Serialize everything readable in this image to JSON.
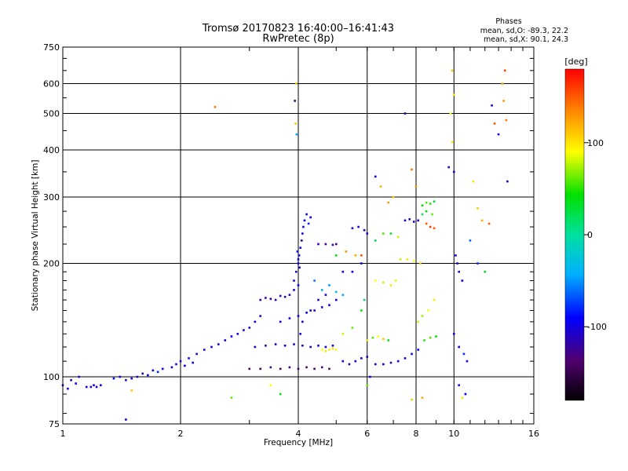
{
  "chart_data": {
    "type": "scatter",
    "title": "Tromsø 20170823 16:40:00–16:41:43",
    "subtitle": "RwPretec (8p)",
    "xlabel": "Frequency [MHz]",
    "ylabel": "Stationary phase Virtual Height [km]",
    "x_scale": "log",
    "y_scale": "log",
    "xlim": [
      1,
      16
    ],
    "ylim": [
      75,
      750
    ],
    "x_ticks": [
      1,
      2,
      4,
      6,
      8,
      10,
      16
    ],
    "x_tick_labels": [
      "1",
      "2",
      "4",
      "6",
      "8",
      "10",
      "16"
    ],
    "y_ticks": [
      75,
      100,
      200,
      300,
      400,
      500,
      600,
      750
    ],
    "y_tick_labels": [
      "75",
      "100",
      "200",
      "300",
      "400",
      "500",
      "600",
      "750"
    ],
    "grid": true,
    "stats": {
      "header": "Phases",
      "line_o": "mean, sd,O: -89.3, 22.2",
      "line_x": "mean, sd,X:  90.1, 24.3"
    },
    "colorbar": {
      "label": "[deg]",
      "range": [
        -180,
        180
      ],
      "ticks": [
        -100,
        0,
        100
      ],
      "tick_labels": [
        "-100",
        "0",
        "100"
      ]
    },
    "series": [
      {
        "points": [
          [
            1.0,
            95,
            -100
          ],
          [
            1.03,
            93,
            -95
          ],
          [
            1.05,
            98,
            -110
          ],
          [
            1.08,
            96,
            -90
          ],
          [
            1.1,
            100,
            -105
          ],
          [
            1.15,
            94,
            -100
          ],
          [
            1.18,
            94,
            -110
          ],
          [
            1.2,
            95,
            -95
          ],
          [
            1.22,
            94,
            -100
          ],
          [
            1.25,
            95,
            -100
          ],
          [
            1.35,
            99,
            -90
          ],
          [
            1.4,
            100,
            -100
          ],
          [
            1.45,
            98,
            -110
          ],
          [
            1.5,
            99,
            -95
          ],
          [
            1.55,
            100,
            -100
          ],
          [
            1.6,
            102,
            -110
          ],
          [
            1.65,
            101,
            -90
          ],
          [
            1.7,
            104,
            -100
          ],
          [
            1.75,
            103,
            -80
          ],
          [
            1.8,
            105,
            -100
          ],
          [
            1.9,
            106,
            -110
          ],
          [
            1.95,
            108,
            -100
          ],
          [
            2.0,
            110,
            -95
          ],
          [
            2.05,
            107,
            -100
          ],
          [
            2.1,
            112,
            -85
          ],
          [
            2.15,
            109,
            -100
          ],
          [
            2.2,
            115,
            -110
          ],
          [
            2.3,
            118,
            -100
          ],
          [
            2.4,
            120,
            -95
          ],
          [
            2.5,
            122,
            -105
          ],
          [
            2.6,
            125,
            -100
          ],
          [
            2.7,
            128,
            -90
          ],
          [
            2.8,
            130,
            -100
          ],
          [
            2.9,
            133,
            -110
          ],
          [
            3.0,
            135,
            -100
          ],
          [
            3.1,
            140,
            -95
          ],
          [
            3.2,
            145,
            -105
          ],
          [
            2.45,
            520,
            140
          ],
          [
            1.45,
            77,
            -100
          ],
          [
            1.5,
            92,
            110
          ],
          [
            3.0,
            105,
            -140
          ],
          [
            3.2,
            105,
            -140
          ],
          [
            3.4,
            106,
            -130
          ],
          [
            3.6,
            105,
            -140
          ],
          [
            3.8,
            106,
            -130
          ],
          [
            4.0,
            105,
            -140
          ],
          [
            4.2,
            106,
            -135
          ],
          [
            4.4,
            105,
            -140
          ],
          [
            4.6,
            106,
            -135
          ],
          [
            4.8,
            105,
            -140
          ],
          [
            3.1,
            120,
            -110
          ],
          [
            3.3,
            121,
            -115
          ],
          [
            3.5,
            122,
            -110
          ],
          [
            3.7,
            121,
            -100
          ],
          [
            3.9,
            122,
            -110
          ],
          [
            4.1,
            121,
            -115
          ],
          [
            4.3,
            120,
            -110
          ],
          [
            4.5,
            121,
            -105
          ],
          [
            4.7,
            120,
            -110
          ],
          [
            4.9,
            121,
            -100
          ],
          [
            3.2,
            160,
            -120
          ],
          [
            3.3,
            162,
            -125
          ],
          [
            3.4,
            161,
            -120
          ],
          [
            3.5,
            160,
            -120
          ],
          [
            3.6,
            164,
            -115
          ],
          [
            3.7,
            163,
            -120
          ],
          [
            3.8,
            165,
            -110
          ],
          [
            3.9,
            170,
            -100
          ],
          [
            4.0,
            175,
            -90
          ],
          [
            3.6,
            140,
            -100
          ],
          [
            3.8,
            143,
            -95
          ],
          [
            4.0,
            145,
            -100
          ],
          [
            4.2,
            148,
            -90
          ],
          [
            4.4,
            150,
            -100
          ],
          [
            4.6,
            153,
            -95
          ],
          [
            4.8,
            155,
            -100
          ],
          [
            5.0,
            160,
            -90
          ],
          [
            3.9,
            180,
            -100
          ],
          [
            3.95,
            190,
            -110
          ],
          [
            4.0,
            200,
            -100
          ],
          [
            4.02,
            210,
            -95
          ],
          [
            4.05,
            220,
            -100
          ],
          [
            4.08,
            230,
            -110
          ],
          [
            4.1,
            240,
            -100
          ],
          [
            4.12,
            250,
            -95
          ],
          [
            4.15,
            260,
            -90
          ],
          [
            4.2,
            270,
            -100
          ],
          [
            4.25,
            255,
            -80
          ],
          [
            4.3,
            265,
            -90
          ],
          [
            4.0,
            205,
            -100
          ],
          [
            3.98,
            215,
            -95
          ],
          [
            4.03,
            195,
            -105
          ],
          [
            4.5,
            225,
            -120
          ],
          [
            4.7,
            225,
            -130
          ],
          [
            4.9,
            224,
            -120
          ],
          [
            5.0,
            225,
            -125
          ],
          [
            4.4,
            180,
            -60
          ],
          [
            4.6,
            170,
            -40
          ],
          [
            4.8,
            175,
            -50
          ],
          [
            5.0,
            168,
            -30
          ],
          [
            5.2,
            165,
            -40
          ],
          [
            4.6,
            118,
            90
          ],
          [
            4.7,
            117,
            100
          ],
          [
            4.8,
            118,
            95
          ],
          [
            4.9,
            119,
            100
          ],
          [
            5.0,
            118,
            90
          ],
          [
            5.2,
            130,
            80
          ],
          [
            5.5,
            135,
            60
          ],
          [
            5.8,
            150,
            40
          ],
          [
            5.9,
            160,
            20
          ],
          [
            5.0,
            210,
            40
          ],
          [
            5.3,
            215,
            130
          ],
          [
            5.6,
            210,
            120
          ],
          [
            5.8,
            210,
            150
          ],
          [
            5.5,
            248,
            -110
          ],
          [
            5.7,
            250,
            -100
          ],
          [
            5.9,
            245,
            -120
          ],
          [
            6.0,
            240,
            -100
          ],
          [
            5.2,
            110,
            -100
          ],
          [
            5.4,
            108,
            -110
          ],
          [
            5.6,
            110,
            -100
          ],
          [
            5.8,
            112,
            -105
          ],
          [
            6.0,
            113,
            -100
          ],
          [
            6.1,
            100,
            -100
          ],
          [
            6.3,
            108,
            -110
          ],
          [
            6.6,
            108,
            -100
          ],
          [
            6.9,
            109,
            -115
          ],
          [
            6.0,
            125,
            100
          ],
          [
            6.2,
            127,
            60
          ],
          [
            6.4,
            128,
            90
          ],
          [
            6.6,
            126,
            110
          ],
          [
            6.8,
            125,
            40
          ],
          [
            6.3,
            180,
            90
          ],
          [
            6.6,
            178,
            80
          ],
          [
            6.9,
            175,
            100
          ],
          [
            7.1,
            180,
            85
          ],
          [
            6.3,
            230,
            20
          ],
          [
            6.6,
            240,
            60
          ],
          [
            6.9,
            240,
            30
          ],
          [
            7.2,
            235,
            80
          ],
          [
            6.3,
            340,
            -100
          ],
          [
            6.5,
            320,
            120
          ],
          [
            6.8,
            290,
            130
          ],
          [
            7.0,
            300,
            110
          ],
          [
            7.5,
            260,
            -110
          ],
          [
            7.7,
            262,
            -120
          ],
          [
            7.9,
            258,
            -105
          ],
          [
            8.1,
            260,
            -110
          ],
          [
            7.3,
            205,
            80
          ],
          [
            7.6,
            205,
            100
          ],
          [
            7.9,
            203,
            90
          ],
          [
            8.2,
            200,
            110
          ],
          [
            7.2,
            110,
            -100
          ],
          [
            7.5,
            112,
            -110
          ],
          [
            7.8,
            115,
            -100
          ],
          [
            8.1,
            118,
            -90
          ],
          [
            7.5,
            500,
            -120
          ],
          [
            7.8,
            355,
            140
          ],
          [
            8.0,
            320,
            130
          ],
          [
            8.3,
            285,
            40
          ],
          [
            8.5,
            290,
            60
          ],
          [
            8.7,
            288,
            50
          ],
          [
            8.9,
            292,
            30
          ],
          [
            8.3,
            270,
            20
          ],
          [
            8.5,
            275,
            40
          ],
          [
            8.8,
            270,
            60
          ],
          [
            8.5,
            255,
            150
          ],
          [
            8.7,
            250,
            160
          ],
          [
            8.9,
            248,
            150
          ],
          [
            8.1,
            140,
            80
          ],
          [
            8.3,
            145,
            70
          ],
          [
            8.6,
            150,
            90
          ],
          [
            8.9,
            160,
            100
          ],
          [
            8.4,
            125,
            50
          ],
          [
            8.7,
            127,
            60
          ],
          [
            9.0,
            128,
            40
          ],
          [
            9.8,
            500,
            90
          ],
          [
            9.9,
            650,
            110
          ],
          [
            10.0,
            560,
            100
          ],
          [
            9.9,
            420,
            100
          ],
          [
            9.7,
            360,
            -110
          ],
          [
            10.0,
            350,
            -100
          ],
          [
            10.1,
            210,
            -100
          ],
          [
            10.2,
            200,
            -110
          ],
          [
            10.3,
            190,
            -100
          ],
          [
            10.5,
            180,
            -95
          ],
          [
            10.0,
            130,
            -100
          ],
          [
            10.3,
            120,
            -90
          ],
          [
            10.6,
            115,
            -80
          ],
          [
            10.8,
            110,
            -100
          ],
          [
            10.3,
            95,
            -100
          ],
          [
            10.5,
            88,
            100
          ],
          [
            10.7,
            90,
            -90
          ],
          [
            11.2,
            330,
            100
          ],
          [
            11.5,
            280,
            110
          ],
          [
            11.8,
            260,
            120
          ],
          [
            12.3,
            255,
            150
          ],
          [
            12.5,
            525,
            -110
          ],
          [
            12.7,
            470,
            150
          ],
          [
            13.0,
            440,
            -100
          ],
          [
            13.5,
            650,
            160
          ],
          [
            13.3,
            600,
            120
          ],
          [
            13.4,
            540,
            130
          ],
          [
            13.6,
            480,
            140
          ],
          [
            13.7,
            330,
            -120
          ],
          [
            11.0,
            230,
            -60
          ],
          [
            11.5,
            200,
            -80
          ],
          [
            12.0,
            190,
            40
          ],
          [
            3.95,
            600,
            110
          ],
          [
            3.92,
            540,
            -140
          ],
          [
            3.94,
            470,
            110
          ],
          [
            3.96,
            440,
            -40
          ],
          [
            4.05,
            130,
            -100
          ],
          [
            4.1,
            140,
            -110
          ],
          [
            4.3,
            150,
            -100
          ],
          [
            4.5,
            160,
            -110
          ],
          [
            4.7,
            165,
            -100
          ],
          [
            5.2,
            190,
            -100
          ],
          [
            5.5,
            190,
            -90
          ],
          [
            5.8,
            200,
            -100
          ],
          [
            2.7,
            88,
            60
          ],
          [
            3.4,
            95,
            90
          ],
          [
            3.6,
            90,
            40
          ],
          [
            6.0,
            95,
            60
          ],
          [
            7.8,
            87,
            110
          ],
          [
            8.3,
            88,
            120
          ]
        ]
      }
    ]
  }
}
